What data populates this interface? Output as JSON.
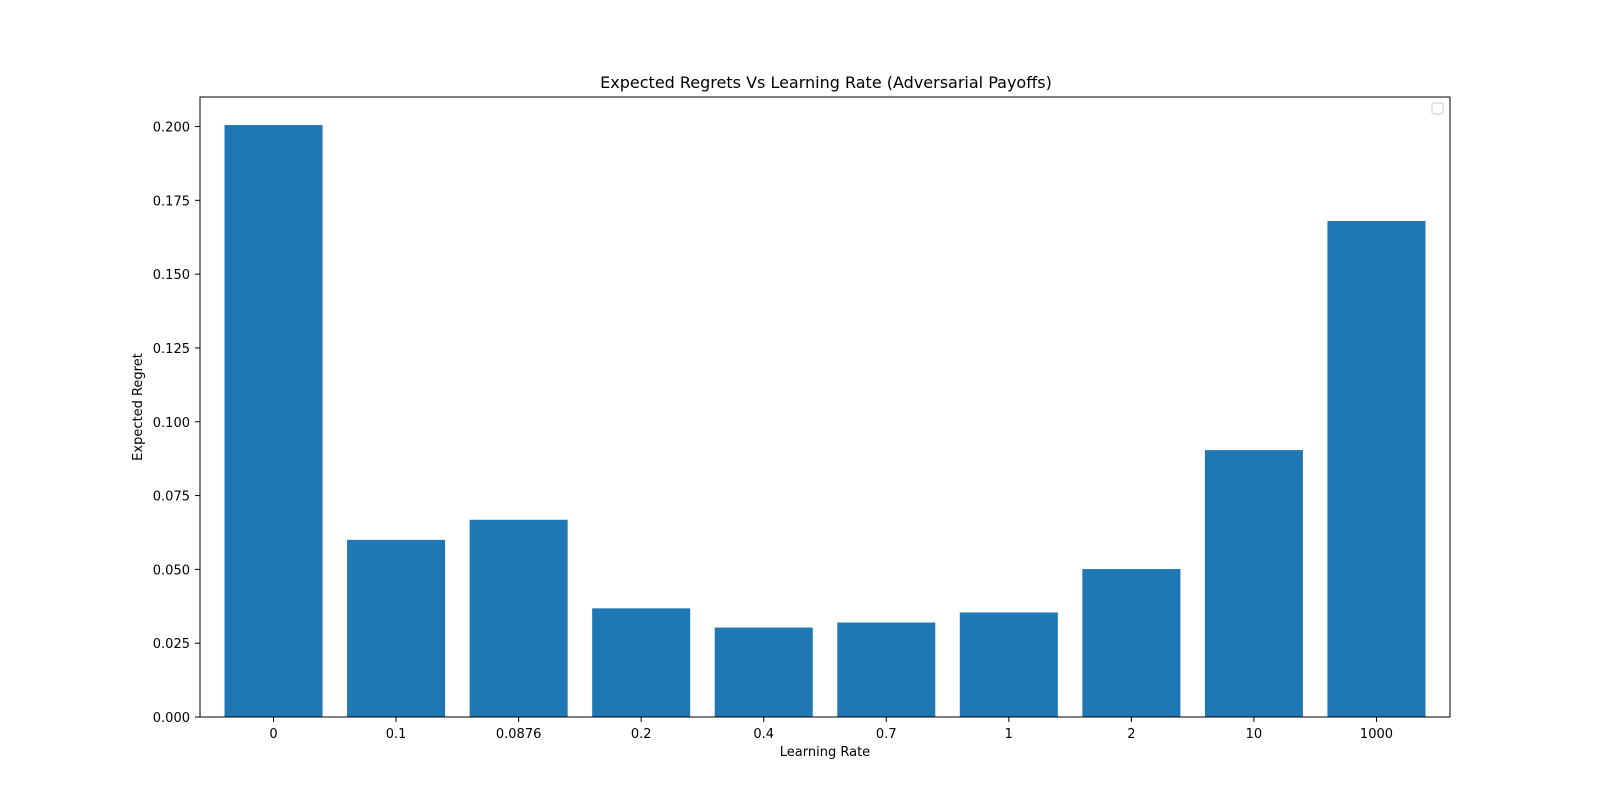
{
  "chart_data": {
    "type": "bar",
    "title": "Expected Regrets Vs Learning Rate (Adversarial Payoffs)",
    "xlabel": "Learning Rate",
    "ylabel": "Expected Regret",
    "categories": [
      "0",
      "0.1",
      "0.0876",
      "0.2",
      "0.4",
      "0.7",
      "1",
      "2",
      "10",
      "1000"
    ],
    "values": [
      0.2005,
      0.06,
      0.0668,
      0.0368,
      0.0303,
      0.032,
      0.0354,
      0.0501,
      0.0904,
      0.168
    ],
    "ylim": [
      0,
      0.21
    ],
    "yticks": [
      0.0,
      0.025,
      0.05,
      0.075,
      0.1,
      0.125,
      0.15,
      0.175,
      0.2
    ],
    "ytick_labels": [
      "0.000",
      "0.025",
      "0.050",
      "0.075",
      "0.100",
      "0.125",
      "0.150",
      "0.175",
      "0.200"
    ],
    "bar_color": "#1f77b4",
    "grid": false,
    "legend": {
      "placement": "top-right",
      "entries": []
    }
  }
}
